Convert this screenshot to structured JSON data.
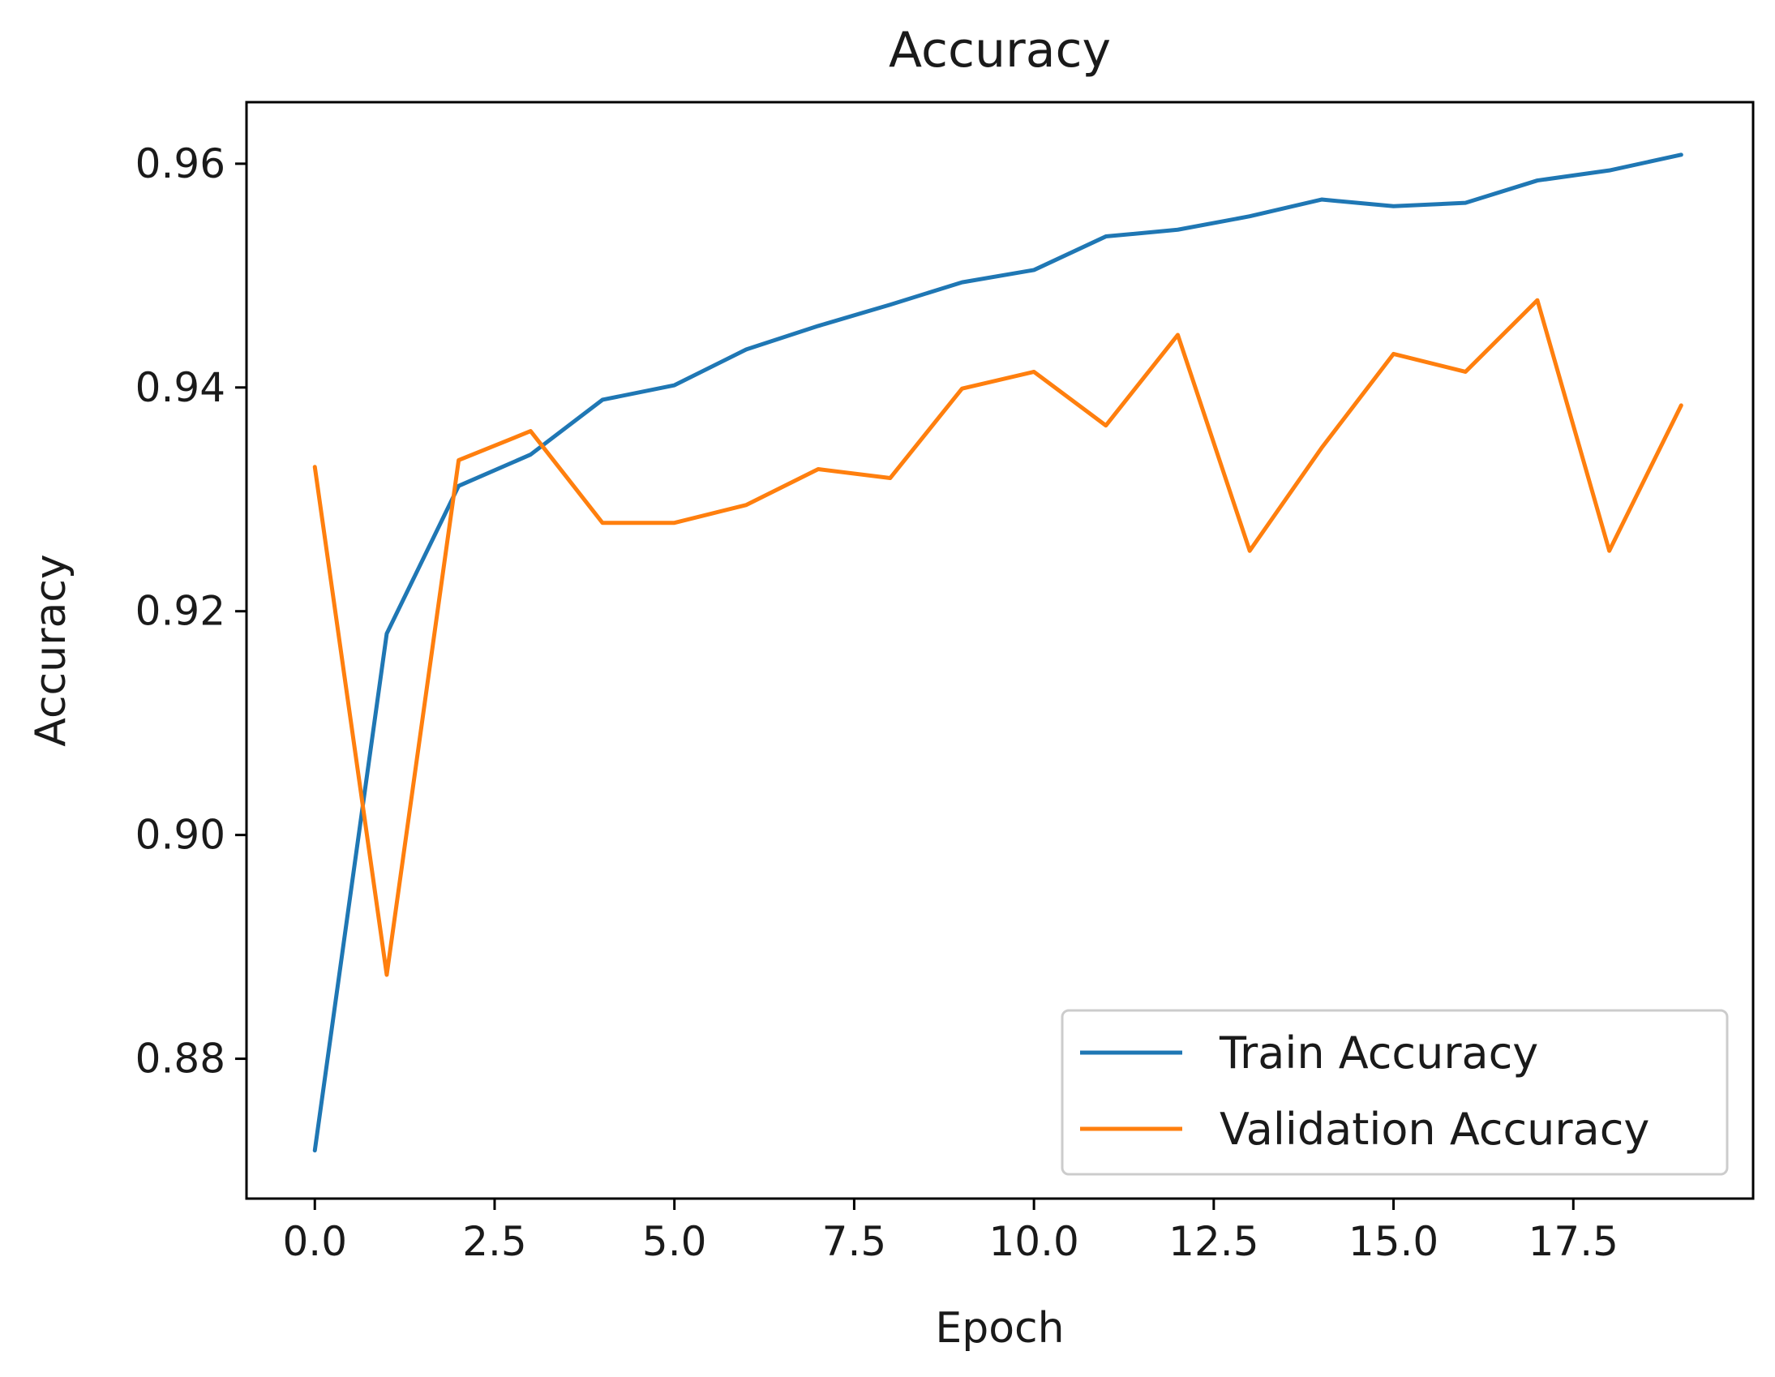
{
  "chart_data": {
    "type": "line",
    "title": "Accuracy",
    "xlabel": "Epoch",
    "ylabel": "Accuracy",
    "xlim": [
      -0.95,
      20.0
    ],
    "ylim": [
      0.8675,
      0.9655
    ],
    "x_ticks": [
      0.0,
      2.5,
      5.0,
      7.5,
      10.0,
      12.5,
      15.0,
      17.5
    ],
    "x_tick_labels": [
      "0.0",
      "2.5",
      "5.0",
      "7.5",
      "10.0",
      "12.5",
      "15.0",
      "17.5"
    ],
    "y_ticks": [
      0.88,
      0.9,
      0.92,
      0.94,
      0.96
    ],
    "y_tick_labels": [
      "0.88",
      "0.90",
      "0.92",
      "0.94",
      "0.96"
    ],
    "grid": false,
    "legend_position": "lower-right",
    "x": [
      0,
      1,
      2,
      3,
      4,
      5,
      6,
      7,
      8,
      9,
      10,
      11,
      12,
      13,
      14,
      15,
      16,
      17,
      18,
      19
    ],
    "series": [
      {
        "name": "Train Accuracy",
        "color": "#1f77b4",
        "values": [
          0.8718,
          0.918,
          0.9312,
          0.934,
          0.9389,
          0.9402,
          0.9434,
          0.9455,
          0.9474,
          0.9494,
          0.9505,
          0.9535,
          0.9541,
          0.9553,
          0.9568,
          0.9562,
          0.9565,
          0.9585,
          0.9594,
          0.9608
        ]
      },
      {
        "name": "Validation Accuracy",
        "color": "#ff7f0e",
        "values": [
          0.9329,
          0.8875,
          0.9335,
          0.9361,
          0.9279,
          0.9279,
          0.9295,
          0.9327,
          0.9319,
          0.9399,
          0.9414,
          0.9366,
          0.9447,
          0.9254,
          0.9346,
          0.943,
          0.9414,
          0.9478,
          0.9254,
          0.9384
        ]
      }
    ]
  }
}
